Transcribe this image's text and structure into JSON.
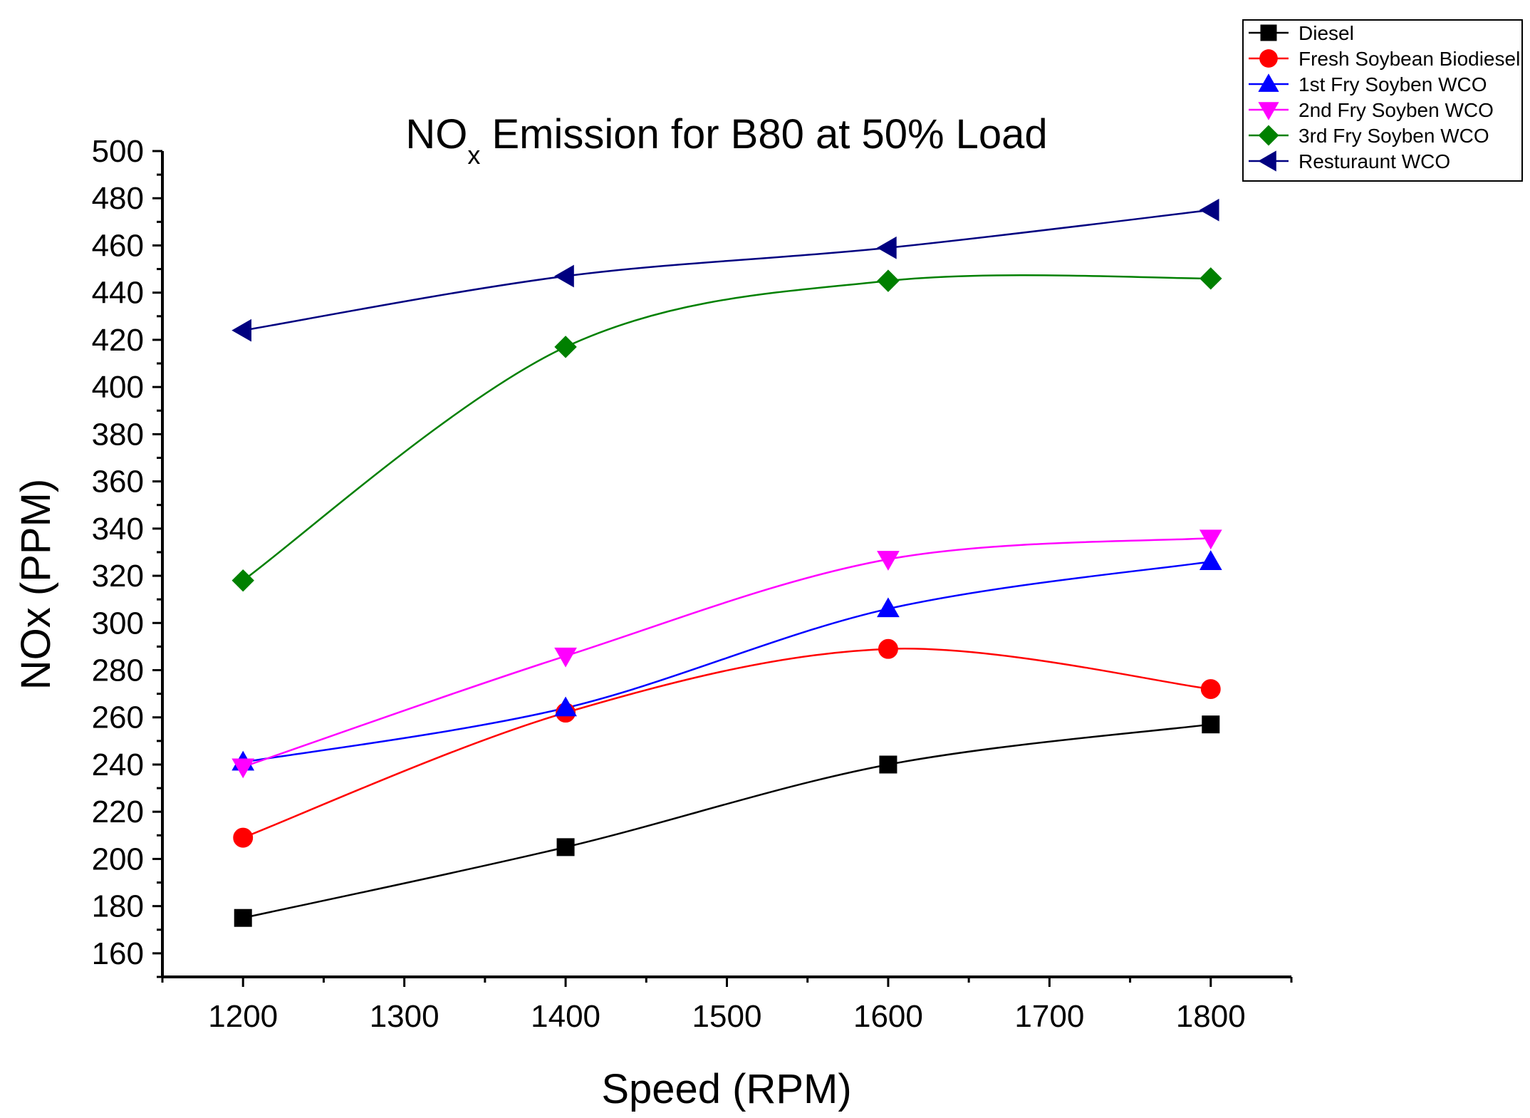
{
  "chart_data": {
    "type": "line",
    "title": "NO",
    "title_subscript": "x",
    "title_rest": " Emission for B80 at 50% Load",
    "xlabel": "Speed (RPM)",
    "ylabel": "NOx (PPM)",
    "xlim": [
      1150,
      1850
    ],
    "ylim": [
      150,
      500
    ],
    "x_ticks": [
      1200,
      1300,
      1400,
      1500,
      1600,
      1700,
      1800
    ],
    "y_ticks": [
      160,
      180,
      200,
      220,
      240,
      260,
      280,
      300,
      320,
      340,
      360,
      380,
      400,
      420,
      440,
      460,
      480,
      500
    ],
    "x_tick_labels": [
      "1200",
      "1300",
      "1400",
      "1500",
      "1600",
      "1700",
      "1800"
    ],
    "y_tick_labels": [
      "160",
      "180",
      "200",
      "220",
      "240",
      "260",
      "280",
      "300",
      "320",
      "340",
      "360",
      "380",
      "400",
      "420",
      "440",
      "460",
      "480",
      "500"
    ],
    "legend_position": "top-right",
    "x": [
      1200,
      1400,
      1600,
      1800
    ],
    "series": [
      {
        "name": "Diesel",
        "color": "#000000",
        "marker": "square",
        "values": [
          175,
          205,
          240,
          257
        ]
      },
      {
        "name": "Fresh Soybean Biodiesel",
        "color": "#ff0000",
        "marker": "circle",
        "values": [
          209,
          262,
          289,
          272
        ]
      },
      {
        "name": "1st Fry Soyben WCO",
        "color": "#0000ff",
        "marker": "triangle-up",
        "values": [
          241,
          264,
          306,
          326
        ]
      },
      {
        "name": "2nd Fry Soyben WCO",
        "color": "#ff00ff",
        "marker": "triangle-down",
        "values": [
          239,
          286,
          327,
          336
        ]
      },
      {
        "name": "3rd Fry Soyben WCO",
        "color": "#008000",
        "marker": "diamond",
        "values": [
          318,
          417,
          445,
          446
        ]
      },
      {
        "name": "Resturaunt WCO",
        "color": "#000080",
        "marker": "triangle-left",
        "values": [
          424,
          447,
          459,
          475
        ]
      }
    ]
  }
}
